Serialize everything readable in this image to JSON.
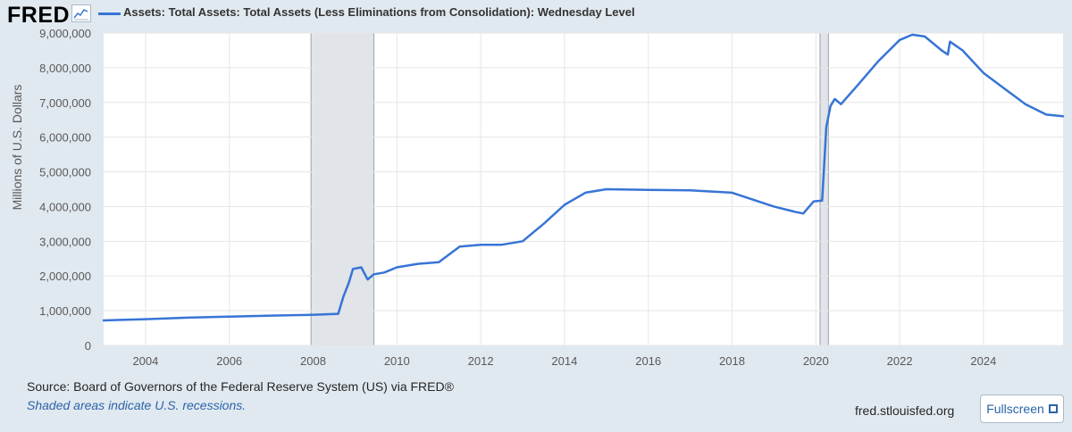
{
  "brand": {
    "name": "FRED",
    "logo_icon": "chart-line-icon"
  },
  "chart_data": {
    "type": "line",
    "title": "",
    "ylabel": "Millions of U.S. Dollars",
    "xlabel": "",
    "xlim": [
      2003.0,
      2025.9
    ],
    "ylim": [
      0,
      9000000
    ],
    "x_ticks": [
      2004,
      2006,
      2008,
      2010,
      2012,
      2014,
      2016,
      2018,
      2020,
      2022,
      2024
    ],
    "y_ticks": [
      0,
      1000000,
      2000000,
      3000000,
      4000000,
      5000000,
      6000000,
      7000000,
      8000000,
      9000000
    ],
    "x_tick_labels": [
      "2004",
      "2006",
      "2008",
      "2010",
      "2012",
      "2014",
      "2016",
      "2018",
      "2020",
      "2022",
      "2024"
    ],
    "y_tick_labels": [
      "0",
      "1,000,000",
      "2,000,000",
      "3,000,000",
      "4,000,000",
      "5,000,000",
      "6,000,000",
      "7,000,000",
      "8,000,000",
      "9,000,000"
    ],
    "grid": true,
    "legend_position": "top-left",
    "recessions": [
      {
        "start": 2007.95,
        "end": 2009.45
      },
      {
        "start": 2020.1,
        "end": 2020.3
      }
    ],
    "series": [
      {
        "name": "Assets: Total Assets: Total Assets (Less Eliminations from Consolidation): Wednesday Level",
        "color": "#3774d6",
        "points": [
          [
            2003.0,
            720000
          ],
          [
            2004.0,
            755000
          ],
          [
            2005.0,
            800000
          ],
          [
            2006.0,
            830000
          ],
          [
            2007.0,
            860000
          ],
          [
            2007.95,
            880000
          ],
          [
            2008.6,
            910000
          ],
          [
            2008.72,
            1400000
          ],
          [
            2008.85,
            1800000
          ],
          [
            2008.95,
            2200000
          ],
          [
            2009.15,
            2250000
          ],
          [
            2009.3,
            1900000
          ],
          [
            2009.45,
            2050000
          ],
          [
            2009.7,
            2100000
          ],
          [
            2010.0,
            2250000
          ],
          [
            2010.5,
            2350000
          ],
          [
            2011.0,
            2400000
          ],
          [
            2011.5,
            2850000
          ],
          [
            2012.0,
            2900000
          ],
          [
            2012.5,
            2900000
          ],
          [
            2013.0,
            3000000
          ],
          [
            2013.5,
            3500000
          ],
          [
            2014.0,
            4050000
          ],
          [
            2014.5,
            4400000
          ],
          [
            2015.0,
            4500000
          ],
          [
            2016.0,
            4480000
          ],
          [
            2017.0,
            4470000
          ],
          [
            2018.0,
            4400000
          ],
          [
            2018.5,
            4200000
          ],
          [
            2019.0,
            4000000
          ],
          [
            2019.5,
            3850000
          ],
          [
            2019.7,
            3800000
          ],
          [
            2019.95,
            4150000
          ],
          [
            2020.15,
            4170000
          ],
          [
            2020.18,
            4800000
          ],
          [
            2020.25,
            6300000
          ],
          [
            2020.35,
            6900000
          ],
          [
            2020.45,
            7100000
          ],
          [
            2020.6,
            6950000
          ],
          [
            2021.0,
            7500000
          ],
          [
            2021.5,
            8200000
          ],
          [
            2022.0,
            8800000
          ],
          [
            2022.3,
            8950000
          ],
          [
            2022.6,
            8900000
          ],
          [
            2023.0,
            8500000
          ],
          [
            2023.15,
            8380000
          ],
          [
            2023.2,
            8750000
          ],
          [
            2023.5,
            8500000
          ],
          [
            2024.0,
            7850000
          ],
          [
            2024.5,
            7400000
          ],
          [
            2025.0,
            6950000
          ],
          [
            2025.5,
            6650000
          ],
          [
            2025.9,
            6600000
          ]
        ]
      }
    ]
  },
  "footer": {
    "source": "Source: Board of Governors of the Federal Reserve System (US) via FRED®",
    "recession_note": "Shaded areas indicate U.S. recessions.",
    "url": "fred.stlouisfed.org",
    "fullscreen_label": "Fullscreen",
    "fullscreen_icon": "fullscreen-icon"
  }
}
